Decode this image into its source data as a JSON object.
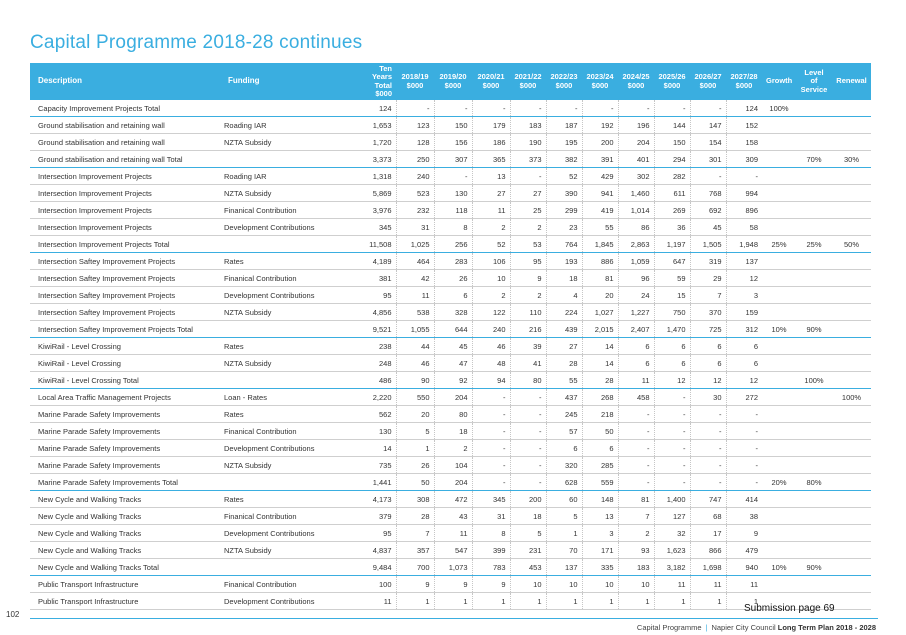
{
  "page_title": "Capital Programme 2018-28 continues",
  "columns": [
    "Description",
    "Funding",
    "Ten Years Total $000",
    "2018/19 $000",
    "2019/20 $000",
    "2020/21 $000",
    "2021/22 $000",
    "2022/23 $000",
    "2023/24 $000",
    "2024/25 $000",
    "2025/26 $000",
    "2026/27 $000",
    "2027/28 $000",
    "Growth",
    "Level of Service",
    "Renewal"
  ],
  "rows": [
    {
      "total": true,
      "cells": [
        "Capacity Improvement Projects Total",
        "",
        "124",
        "-",
        "-",
        "-",
        "-",
        "-",
        "-",
        "-",
        "-",
        "-",
        "124",
        "100%",
        "",
        ""
      ]
    },
    {
      "total": false,
      "cells": [
        "Ground stabilisation and retaining wall",
        "Roading IAR",
        "1,653",
        "123",
        "150",
        "179",
        "183",
        "187",
        "192",
        "196",
        "144",
        "147",
        "152",
        "",
        "",
        ""
      ]
    },
    {
      "total": false,
      "cells": [
        "Ground stabilisation and retaining wall",
        "NZTA Subsidy",
        "1,720",
        "128",
        "156",
        "186",
        "190",
        "195",
        "200",
        "204",
        "150",
        "154",
        "158",
        "",
        "",
        ""
      ]
    },
    {
      "total": true,
      "cells": [
        "Ground stabilisation and retaining wall Total",
        "",
        "3,373",
        "250",
        "307",
        "365",
        "373",
        "382",
        "391",
        "401",
        "294",
        "301",
        "309",
        "",
        "70%",
        "30%"
      ]
    },
    {
      "total": false,
      "cells": [
        "Intersection Improvement Projects",
        "Roading IAR",
        "1,318",
        "240",
        "-",
        "13",
        "-",
        "52",
        "429",
        "302",
        "282",
        "-",
        "-",
        "",
        "",
        ""
      ]
    },
    {
      "total": false,
      "cells": [
        "Intersection Improvement Projects",
        "NZTA Subsidy",
        "5,869",
        "523",
        "130",
        "27",
        "27",
        "390",
        "941",
        "1,460",
        "611",
        "768",
        "994",
        "",
        "",
        ""
      ]
    },
    {
      "total": false,
      "cells": [
        "Intersection Improvement Projects",
        "Finanical Contribution",
        "3,976",
        "232",
        "118",
        "11",
        "25",
        "299",
        "419",
        "1,014",
        "269",
        "692",
        "896",
        "",
        "",
        ""
      ]
    },
    {
      "total": false,
      "cells": [
        "Intersection Improvement Projects",
        "Development Contributions",
        "345",
        "31",
        "8",
        "2",
        "2",
        "23",
        "55",
        "86",
        "36",
        "45",
        "58",
        "",
        "",
        ""
      ]
    },
    {
      "total": true,
      "cells": [
        "Intersection Improvement Projects Total",
        "",
        "11,508",
        "1,025",
        "256",
        "52",
        "53",
        "764",
        "1,845",
        "2,863",
        "1,197",
        "1,505",
        "1,948",
        "25%",
        "25%",
        "50%"
      ]
    },
    {
      "total": false,
      "cells": [
        "Intersection Saftey Improvement Projects",
        "Rates",
        "4,189",
        "464",
        "283",
        "106",
        "95",
        "193",
        "886",
        "1,059",
        "647",
        "319",
        "137",
        "",
        "",
        ""
      ]
    },
    {
      "total": false,
      "cells": [
        "Intersection Saftey Improvement Projects",
        "Finanical Contribution",
        "381",
        "42",
        "26",
        "10",
        "9",
        "18",
        "81",
        "96",
        "59",
        "29",
        "12",
        "",
        "",
        ""
      ]
    },
    {
      "total": false,
      "cells": [
        "Intersection Saftey Improvement Projects",
        "Development Contributions",
        "95",
        "11",
        "6",
        "2",
        "2",
        "4",
        "20",
        "24",
        "15",
        "7",
        "3",
        "",
        "",
        ""
      ]
    },
    {
      "total": false,
      "cells": [
        "Intersection Saftey Improvement Projects",
        "NZTA Subsidy",
        "4,856",
        "538",
        "328",
        "122",
        "110",
        "224",
        "1,027",
        "1,227",
        "750",
        "370",
        "159",
        "",
        "",
        ""
      ]
    },
    {
      "total": true,
      "cells": [
        "Intersection Saftey Improvement Projects Total",
        "",
        "9,521",
        "1,055",
        "644",
        "240",
        "216",
        "439",
        "2,015",
        "2,407",
        "1,470",
        "725",
        "312",
        "10%",
        "90%",
        ""
      ]
    },
    {
      "total": false,
      "cells": [
        "KiwiRail - Level Crossing",
        "Rates",
        "238",
        "44",
        "45",
        "46",
        "39",
        "27",
        "14",
        "6",
        "6",
        "6",
        "6",
        "",
        "",
        ""
      ]
    },
    {
      "total": false,
      "cells": [
        "KiwiRail - Level Crossing",
        "NZTA Subsidy",
        "248",
        "46",
        "47",
        "48",
        "41",
        "28",
        "14",
        "6",
        "6",
        "6",
        "6",
        "",
        "",
        ""
      ]
    },
    {
      "total": true,
      "cells": [
        "KiwiRail - Level Crossing Total",
        "",
        "486",
        "90",
        "92",
        "94",
        "80",
        "55",
        "28",
        "11",
        "12",
        "12",
        "12",
        "",
        "100%",
        ""
      ]
    },
    {
      "total": false,
      "cells": [
        "Local Area Traffic Management Projects",
        "Loan - Rates",
        "2,220",
        "550",
        "204",
        "-",
        "-",
        "437",
        "268",
        "458",
        "-",
        "30",
        "272",
        "",
        "",
        "100%"
      ]
    },
    {
      "total": false,
      "cells": [
        "Marine Parade Safety Improvements",
        "Rates",
        "562",
        "20",
        "80",
        "-",
        "-",
        "245",
        "218",
        "-",
        "-",
        "-",
        "-",
        "",
        "",
        ""
      ]
    },
    {
      "total": false,
      "cells": [
        "Marine Parade Safety Improvements",
        "Finanical Contribution",
        "130",
        "5",
        "18",
        "-",
        "-",
        "57",
        "50",
        "-",
        "-",
        "-",
        "-",
        "",
        "",
        ""
      ]
    },
    {
      "total": false,
      "cells": [
        "Marine Parade Safety Improvements",
        "Development Contributions",
        "14",
        "1",
        "2",
        "-",
        "-",
        "6",
        "6",
        "-",
        "-",
        "-",
        "-",
        "",
        "",
        ""
      ]
    },
    {
      "total": false,
      "cells": [
        "Marine Parade Safety Improvements",
        "NZTA Subsidy",
        "735",
        "26",
        "104",
        "-",
        "-",
        "320",
        "285",
        "-",
        "-",
        "-",
        "-",
        "",
        "",
        ""
      ]
    },
    {
      "total": true,
      "cells": [
        "Marine Parade Safety Improvements Total",
        "",
        "1,441",
        "50",
        "204",
        "-",
        "-",
        "628",
        "559",
        "-",
        "-",
        "-",
        "-",
        "20%",
        "80%",
        ""
      ]
    },
    {
      "total": false,
      "cells": [
        "New Cycle and Walking Tracks",
        "Rates",
        "4,173",
        "308",
        "472",
        "345",
        "200",
        "60",
        "148",
        "81",
        "1,400",
        "747",
        "414",
        "",
        "",
        ""
      ]
    },
    {
      "total": false,
      "cells": [
        "New Cycle and Walking Tracks",
        "Finanical Contribution",
        "379",
        "28",
        "43",
        "31",
        "18",
        "5",
        "13",
        "7",
        "127",
        "68",
        "38",
        "",
        "",
        ""
      ]
    },
    {
      "total": false,
      "cells": [
        "New Cycle and Walking Tracks",
        "Development Contributions",
        "95",
        "7",
        "11",
        "8",
        "5",
        "1",
        "3",
        "2",
        "32",
        "17",
        "9",
        "",
        "",
        ""
      ]
    },
    {
      "total": false,
      "cells": [
        "New Cycle and Walking Tracks",
        "NZTA Subsidy",
        "4,837",
        "357",
        "547",
        "399",
        "231",
        "70",
        "171",
        "93",
        "1,623",
        "866",
        "479",
        "",
        "",
        ""
      ]
    },
    {
      "total": true,
      "cells": [
        "New Cycle and Walking Tracks Total",
        "",
        "9,484",
        "700",
        "1,073",
        "783",
        "453",
        "137",
        "335",
        "183",
        "3,182",
        "1,698",
        "940",
        "10%",
        "90%",
        ""
      ]
    },
    {
      "total": false,
      "cells": [
        "Public Transport Infrastructure",
        "Finanical Contribution",
        "100",
        "9",
        "9",
        "9",
        "10",
        "10",
        "10",
        "10",
        "11",
        "11",
        "11",
        "",
        "",
        ""
      ]
    },
    {
      "total": false,
      "cells": [
        "Public Transport Infrastructure",
        "Development Contributions",
        "11",
        "1",
        "1",
        "1",
        "1",
        "1",
        "1",
        "1",
        "1",
        "1",
        "1",
        "",
        "",
        ""
      ]
    }
  ],
  "submission_note": "Submission page 69",
  "page_number": "102",
  "footer": {
    "section": "Capital Programme",
    "council": "Napier City Council",
    "plan": "Long Term Plan 2018 - 2028"
  },
  "colors": {
    "accent": "#3aaee0",
    "text": "#2b2b2b"
  }
}
